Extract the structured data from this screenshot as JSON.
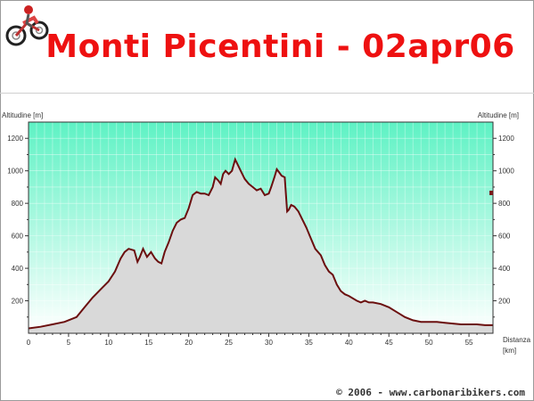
{
  "title": "Monti Picentini - 02apr06",
  "footer": "© 2006 - www.carbonaribikers.com",
  "colors": {
    "title": "#ee1111",
    "profile_line": "#6b0f0f",
    "profile_fill": "#d9d9d9"
  },
  "logo_icon": "motorbike-rider-icon",
  "chart_data": {
    "type": "area",
    "ylabel_left": "Altitudine [m]",
    "ylabel_right": "Altitudine [m]",
    "xlabel": "Distanza",
    "xunit": "[km]",
    "xlim": [
      0,
      58
    ],
    "ylim": [
      0,
      1300
    ],
    "xticks": [
      0,
      5,
      10,
      15,
      20,
      25,
      30,
      35,
      40,
      45,
      50,
      55
    ],
    "yticks": [
      200,
      400,
      600,
      800,
      1000,
      1200
    ],
    "grid": true,
    "x": [
      0,
      1.5,
      3,
      4.5,
      6,
      7,
      8,
      9,
      10,
      10.8,
      11.5,
      12,
      12.5,
      13.2,
      13.6,
      13.9,
      14.3,
      14.8,
      15.3,
      15.8,
      16.2,
      16.6,
      17,
      17.5,
      18,
      18.5,
      19,
      19.5,
      20,
      20.5,
      21,
      21.5,
      22,
      22.5,
      23,
      23.3,
      23.7,
      24,
      24.3,
      24.6,
      25,
      25.4,
      25.8,
      26.1,
      26.5,
      27,
      27.5,
      28,
      28.5,
      29,
      29.5,
      30,
      30.3,
      30.7,
      31,
      31.3,
      31.6,
      32,
      32.3,
      32.5,
      32.8,
      33.2,
      33.7,
      34.2,
      34.7,
      35.2,
      35.8,
      36.5,
      37,
      37.5,
      38,
      38.5,
      39,
      39.5,
      40,
      41,
      41.5,
      42,
      42.5,
      43,
      44,
      45,
      46,
      47,
      48,
      49,
      50,
      51,
      52,
      53,
      54,
      55,
      56,
      57,
      58
    ],
    "values": [
      30,
      40,
      55,
      70,
      100,
      160,
      220,
      270,
      320,
      380,
      460,
      500,
      520,
      510,
      440,
      470,
      520,
      470,
      500,
      460,
      440,
      430,
      500,
      560,
      630,
      680,
      700,
      710,
      770,
      850,
      870,
      860,
      860,
      850,
      900,
      960,
      940,
      920,
      980,
      1000,
      980,
      1000,
      1070,
      1040,
      1000,
      950,
      920,
      900,
      880,
      890,
      850,
      860,
      900,
      960,
      1010,
      990,
      970,
      960,
      750,
      760,
      790,
      780,
      750,
      700,
      650,
      590,
      520,
      480,
      420,
      380,
      360,
      300,
      260,
      240,
      230,
      200,
      190,
      200,
      190,
      190,
      180,
      160,
      130,
      100,
      80,
      70,
      70,
      70,
      65,
      60,
      55,
      55,
      55,
      50,
      50
    ]
  }
}
